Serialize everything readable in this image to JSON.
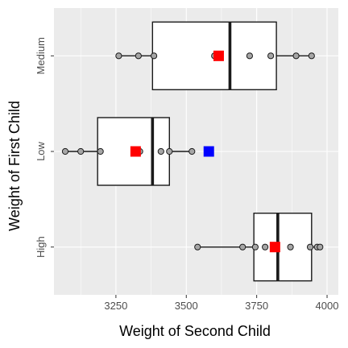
{
  "chart_data": {
    "type": "boxplot",
    "orientation": "horizontal",
    "xlabel": "Weight of Second Child",
    "ylabel": "Weight of First Child",
    "xlim": [
      3030,
      4040
    ],
    "x_ticks": [
      {
        "value": 3250,
        "label": "3250"
      },
      {
        "value": 3500,
        "label": "3500"
      },
      {
        "value": 3750,
        "label": "3750"
      },
      {
        "value": 4000,
        "label": "4000"
      }
    ],
    "categories": [
      "High",
      "Low",
      "Medium"
    ],
    "grid": true,
    "colors": {
      "panel_background": "#ebebeb",
      "grid_major": "#ffffff",
      "box_fill": "#ffffff",
      "box_stroke": "#1a1a1a",
      "point_fill": "#a6a6a6",
      "mean_marker": "#ff0000",
      "extra_marker": "#0000ff"
    },
    "groups": [
      {
        "category": "High",
        "box": {
          "whisker_low": 3540,
          "q1": 3740,
          "median": 3825,
          "q3": 3945,
          "whisker_high": 3975
        },
        "points": [
          3540,
          3700,
          3745,
          3780,
          3870,
          3940,
          3965,
          3975
        ],
        "mean": 3815
      },
      {
        "category": "Low",
        "box": {
          "whisker_low": 3070,
          "q1": 3185,
          "median": 3380,
          "q3": 3440,
          "whisker_high": 3520
        },
        "points": [
          3070,
          3125,
          3195,
          3335,
          3410,
          3440,
          3520
        ],
        "mean": 3320,
        "extra_marker": 3580
      },
      {
        "category": "Medium",
        "box": {
          "whisker_low": 3260,
          "q1": 3380,
          "median": 3655,
          "q3": 3820,
          "whisker_high": 3945
        },
        "points": [
          3260,
          3330,
          3385,
          3600,
          3725,
          3800,
          3890,
          3945
        ],
        "mean": 3615
      }
    ]
  }
}
